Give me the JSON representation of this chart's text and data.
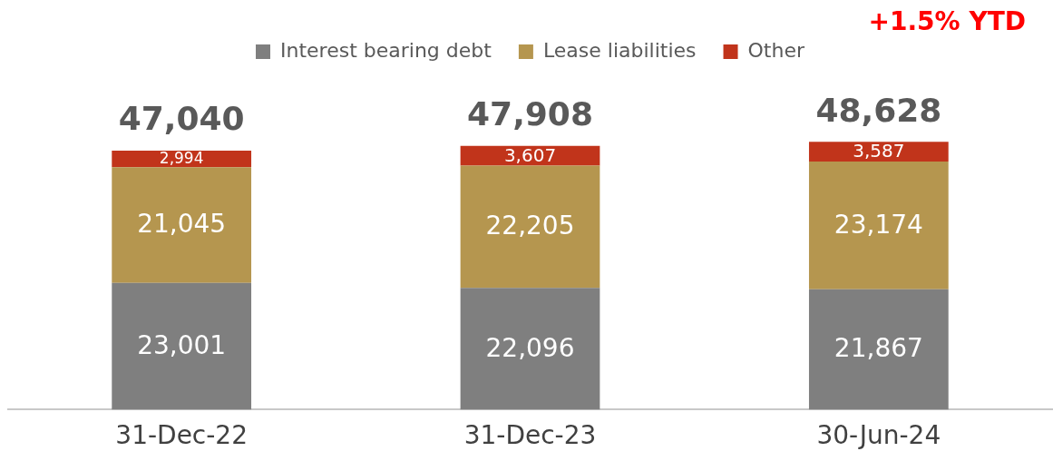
{
  "chart_data": {
    "type": "bar",
    "stacked": true,
    "categories": [
      "31-Dec-22",
      "31-Dec-23",
      "30-Jun-24"
    ],
    "series": [
      {
        "name": "Interest bearing debt",
        "color": "#7f7f7f",
        "values": [
          23001,
          22096,
          21867
        ],
        "value_labels": [
          "23,001",
          "22,096",
          "21,867"
        ]
      },
      {
        "name": "Lease liabilities",
        "color": "#b5964f",
        "values": [
          21045,
          22205,
          23174
        ],
        "value_labels": [
          "21,045",
          "22,205",
          "23,174"
        ]
      },
      {
        "name": "Other",
        "color": "#c1341b",
        "values": [
          2994,
          3607,
          3587
        ],
        "value_labels": [
          "2,994",
          "3,607",
          "3,587"
        ]
      }
    ],
    "totals": [
      "47,040",
      "47,908",
      "48,628"
    ],
    "legend": "top",
    "grid": false,
    "annotations": [
      "+1.5% YTD"
    ]
  }
}
